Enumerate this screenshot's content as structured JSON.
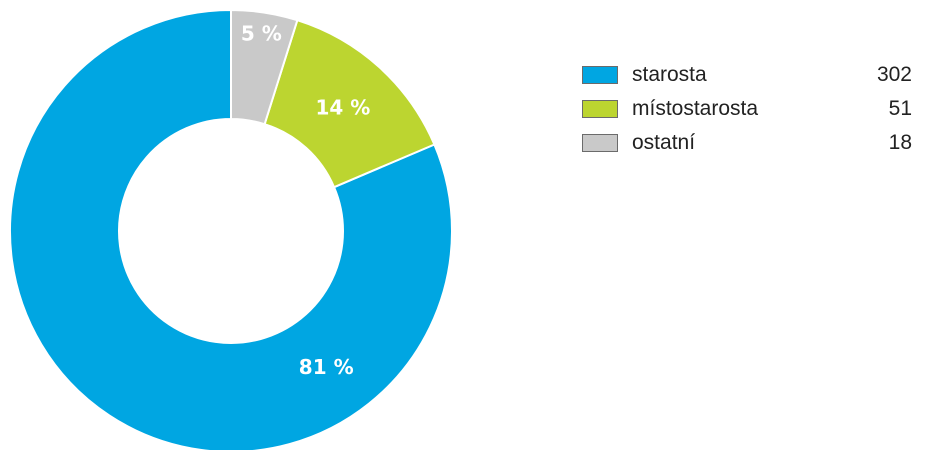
{
  "chart_data": {
    "type": "pie",
    "variant": "donut",
    "title": "",
    "categories": [
      "starosta",
      "místostarosta",
      "ostatní"
    ],
    "values": [
      302,
      51,
      18
    ],
    "percent_labels": [
      "81 %",
      "14 %",
      "5 %"
    ],
    "colors": [
      "#00a6e2",
      "#bcd530",
      "#c9c9c9"
    ],
    "legend_position": "right"
  }
}
